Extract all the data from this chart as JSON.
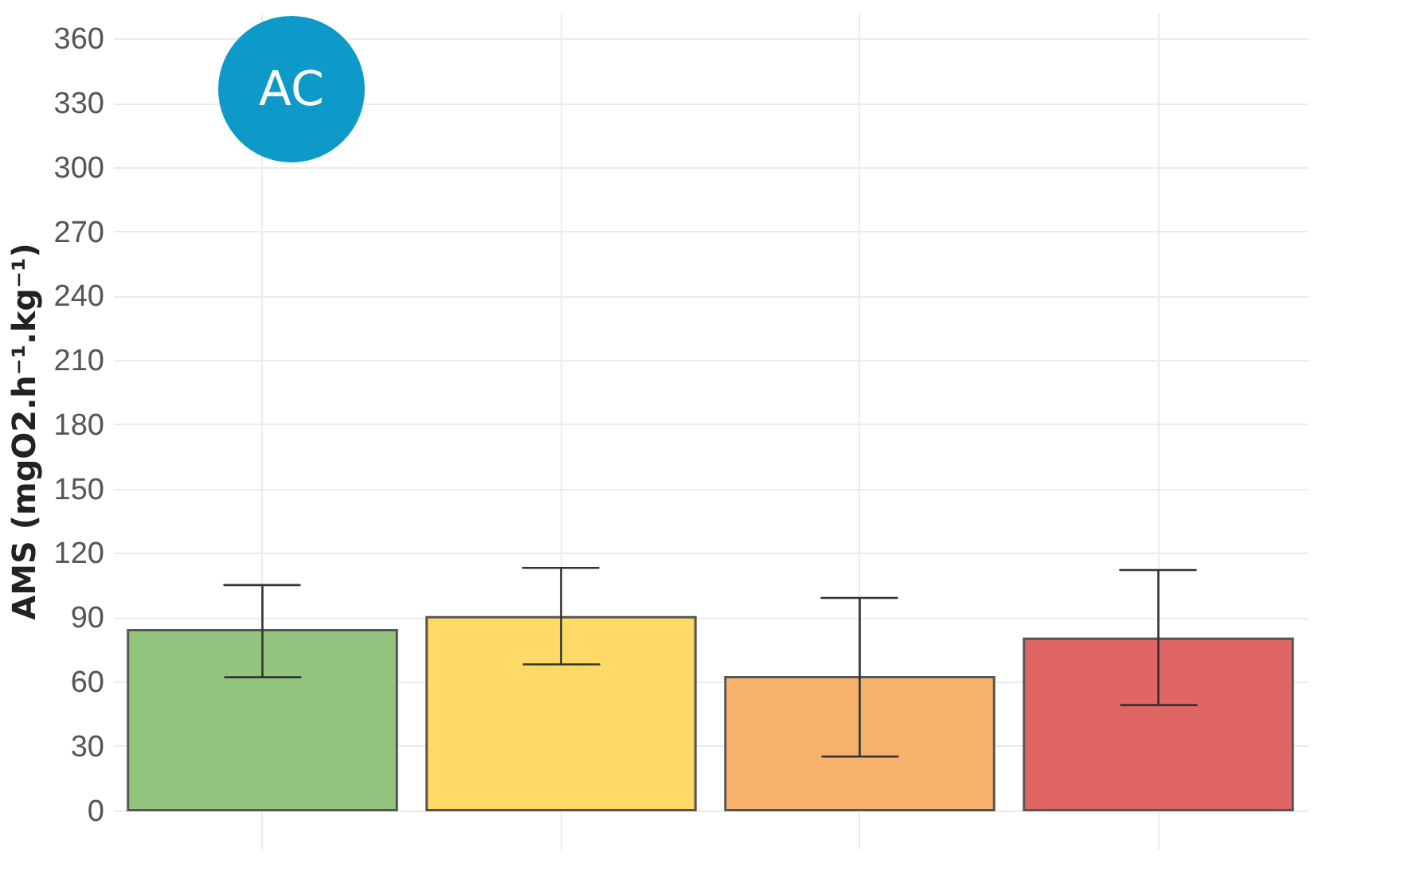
{
  "chart_data": {
    "type": "bar",
    "ylabel": "AMS  (mgO2.h⁻¹.kg⁻¹)",
    "annotations": [
      "AC"
    ],
    "categories": [
      null,
      null,
      null,
      null
    ],
    "values": [
      84,
      90,
      62,
      80
    ],
    "colors": [
      "#93c47d",
      "#ffd966",
      "#f6b26b",
      "#e06666"
    ],
    "errors": [
      [
        62,
        105
      ],
      [
        68,
        113
      ],
      [
        25,
        99
      ],
      [
        49,
        112
      ]
    ],
    "ylim": [
      -18,
      372
    ],
    "yticks": [
      0,
      30,
      60,
      90,
      120,
      150,
      180,
      210,
      240,
      270,
      300,
      330,
      360
    ],
    "grid": true
  }
}
